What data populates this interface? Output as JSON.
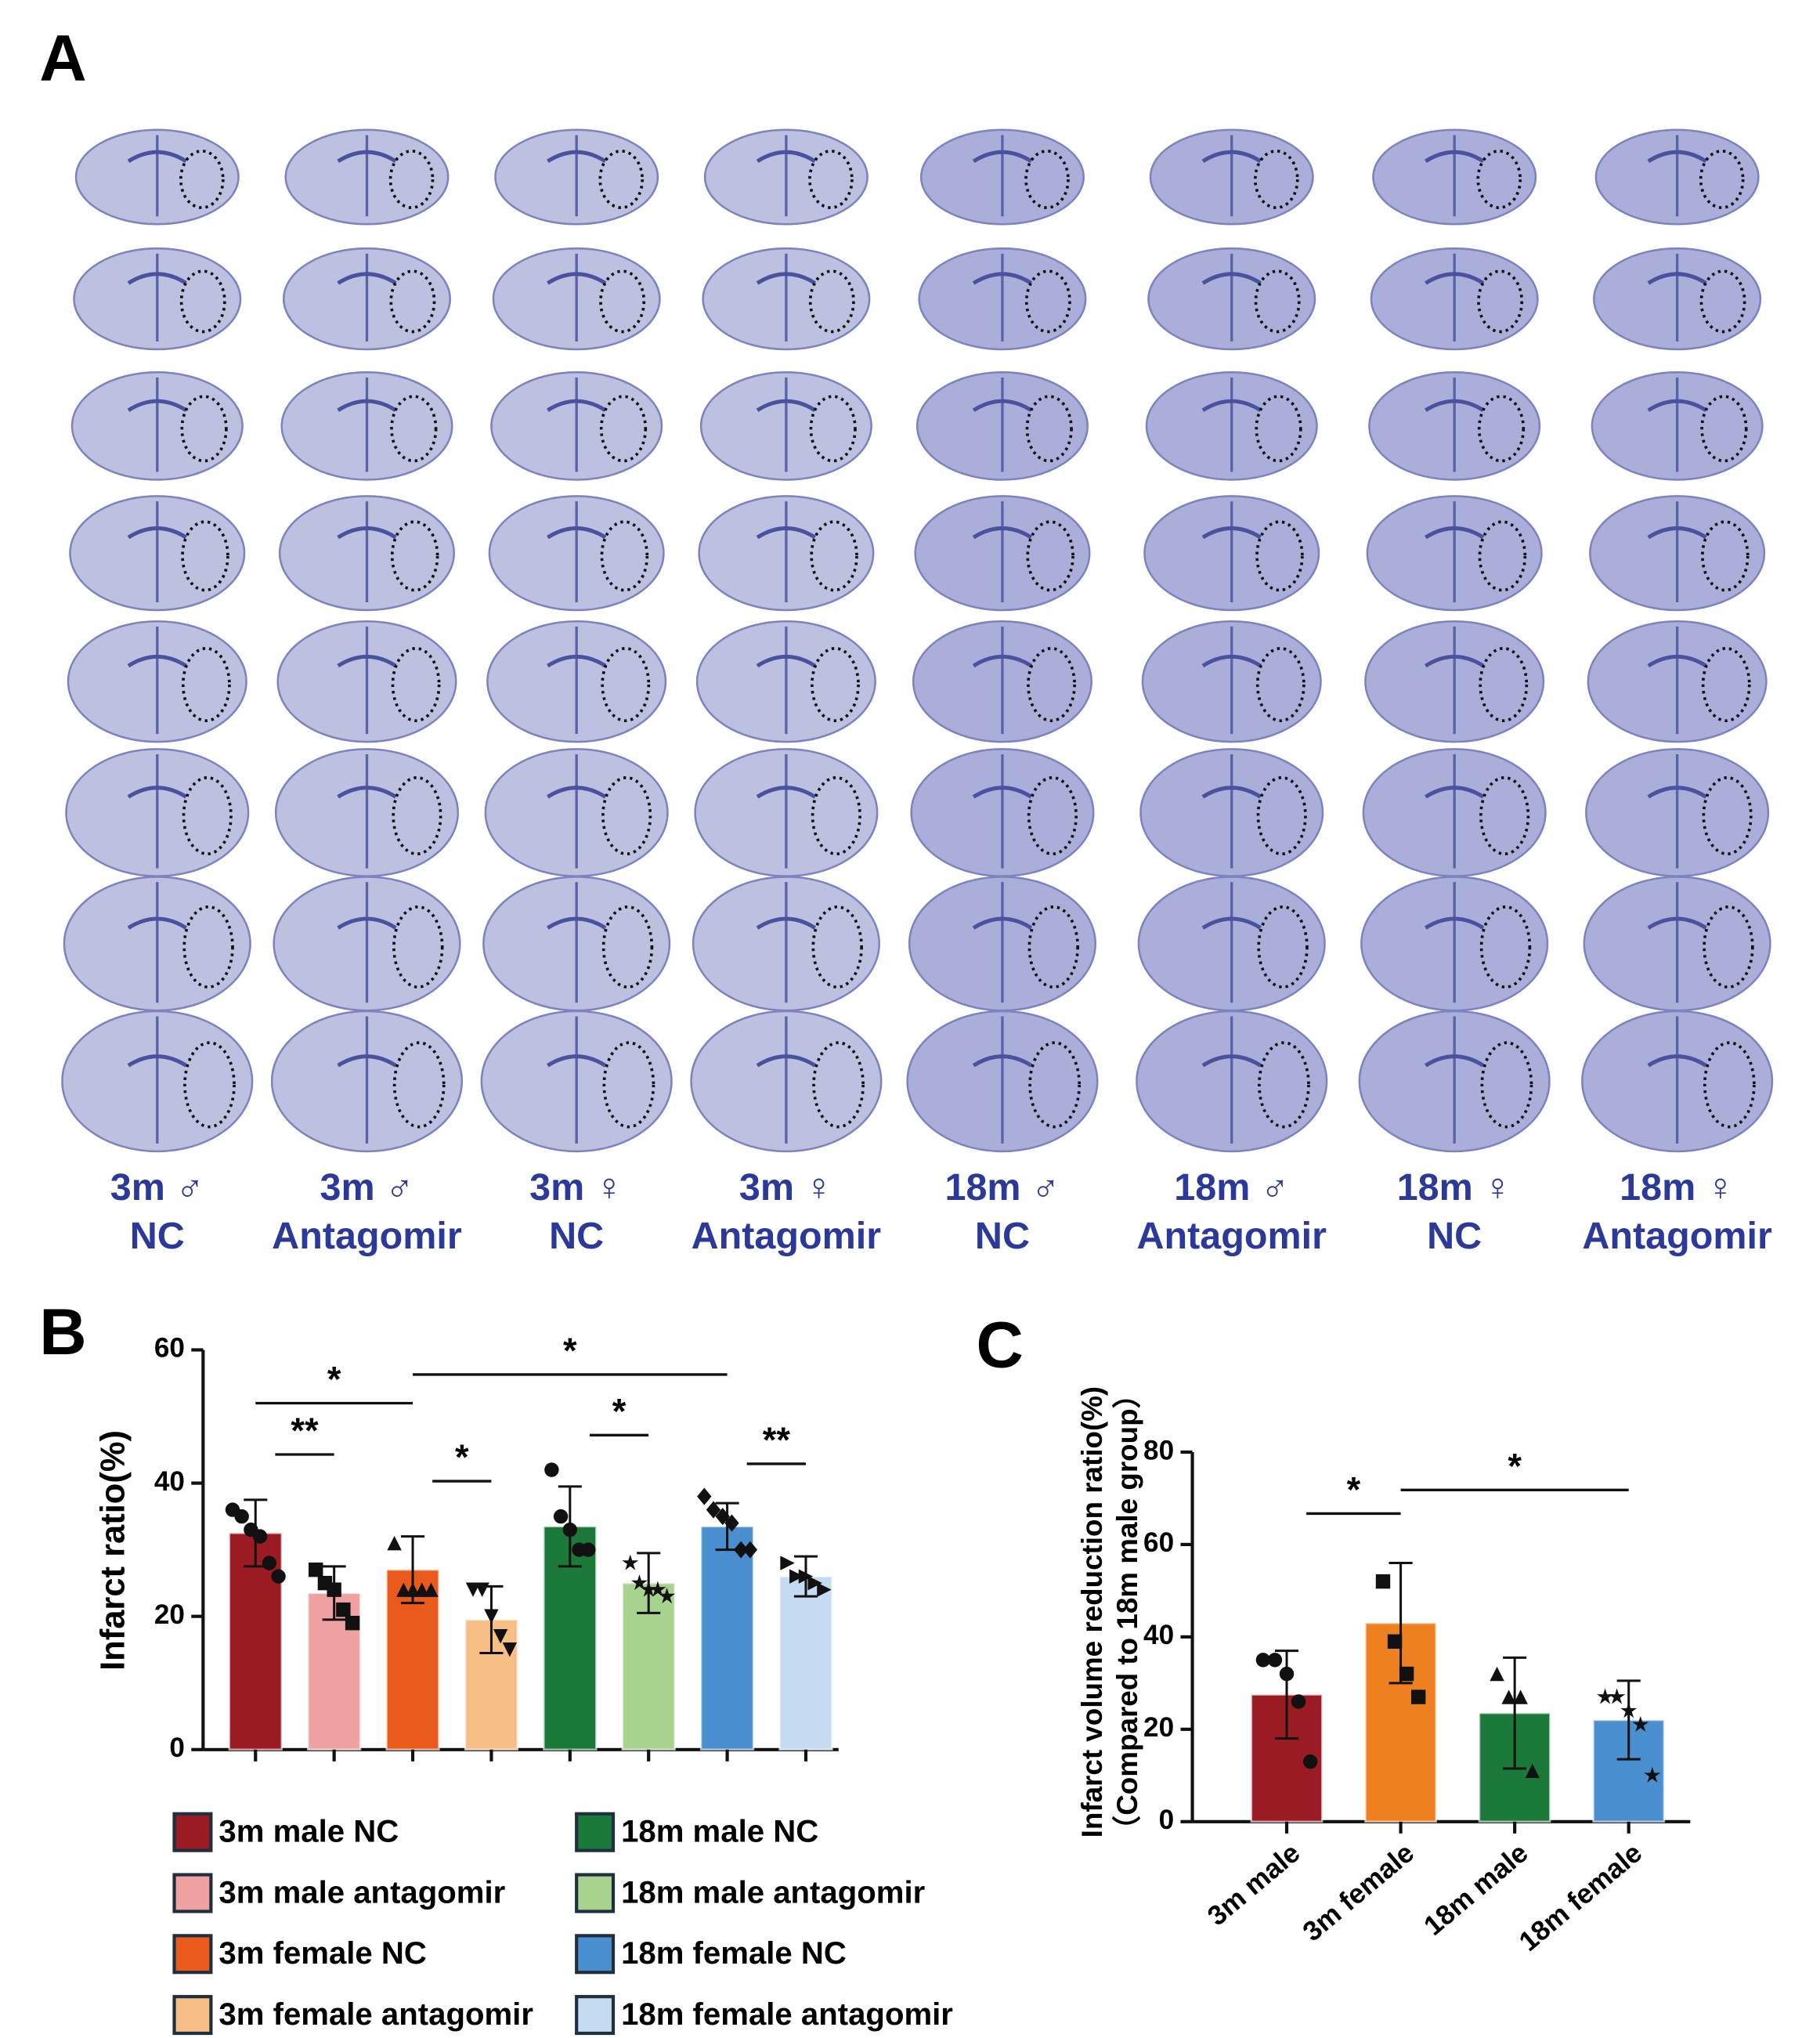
{
  "panel_a": {
    "panel_label": "A",
    "groups": [
      {
        "line1": "3m ♂",
        "line2": "NC"
      },
      {
        "line1": "3m ♂",
        "line2": "Antagomir"
      },
      {
        "line1": "3m ♀",
        "line2": "NC"
      },
      {
        "line1": "3m ♀",
        "line2": "Antagomir"
      },
      {
        "line1": "18m ♂",
        "line2": "NC"
      },
      {
        "line1": "18m ♂",
        "line2": "Antagomir"
      },
      {
        "line1": "18m ♀",
        "line2": "NC"
      },
      {
        "line1": "18m ♀",
        "line2": "Antagomir"
      }
    ]
  },
  "chart_data": [
    {
      "type": "bar",
      "panel_label": "B",
      "ylabel": "Infarct ratio(%)",
      "categories": [
        "3m male NC",
        "3m male antagomir",
        "3m female NC",
        "3m female antagomir",
        "18m male NC",
        "18m male antagomir",
        "18m female NC",
        "18m female antagomir"
      ],
      "values": [
        32.5,
        23.5,
        27,
        19.5,
        33.5,
        25,
        33.5,
        26
      ],
      "errors": [
        5,
        4,
        5,
        5,
        6,
        4.5,
        3.5,
        3
      ],
      "colors": [
        "#9b1b22",
        "#f0a2a2",
        "#e95a1c",
        "#f7bf86",
        "#1b7a3a",
        "#a8d38e",
        "#4a8fd0",
        "#c5dbf2"
      ],
      "markers": [
        "circle",
        "square",
        "triangle",
        "triangle-down",
        "circle",
        "star",
        "diamond",
        "triangle-right"
      ],
      "points": [
        [
          36,
          35,
          33,
          32,
          28,
          26
        ],
        [
          27,
          25,
          24,
          21,
          19
        ],
        [
          31,
          24,
          24,
          24,
          24
        ],
        [
          24,
          24,
          20,
          17,
          15
        ],
        [
          42,
          35,
          33,
          30,
          30
        ],
        [
          28,
          25,
          24,
          24,
          23
        ],
        [
          38,
          36,
          35,
          34,
          30,
          30
        ],
        [
          28,
          26,
          26,
          25,
          24
        ]
      ],
      "ylim": [
        0,
        60
      ],
      "yticks": [
        0,
        20,
        40,
        60
      ],
      "annotations": [
        {
          "from": 0,
          "to": 1,
          "y": 44.3,
          "label": "**"
        },
        {
          "from": 0,
          "to": 2,
          "y": 52,
          "label": "*"
        },
        {
          "from": 2,
          "to": 6,
          "y": 56.3,
          "label": "*"
        },
        {
          "from": 2,
          "to": 3,
          "y": 40.3,
          "label": "*"
        },
        {
          "from": 4,
          "to": 5,
          "y": 47.2,
          "label": "*"
        },
        {
          "from": 6,
          "to": 7,
          "y": 42.9,
          "label": "**"
        }
      ]
    },
    {
      "type": "bar",
      "panel_label": "C",
      "ylabel": [
        "Infarct volume reduction ratio(%)",
        "（Compared to 18m male group）"
      ],
      "categories": [
        "3m male",
        "3m female",
        "18m male",
        "18m female"
      ],
      "values": [
        27.5,
        43,
        23.5,
        22
      ],
      "errors": [
        9.5,
        13,
        12,
        8.5
      ],
      "colors": [
        "#9b1b22",
        "#ef8020",
        "#1b7a3a",
        "#4a8fd0"
      ],
      "markers": [
        "circle",
        "square",
        "triangle",
        "star"
      ],
      "points": [
        [
          35,
          35,
          32,
          26,
          13
        ],
        [
          52,
          39,
          32,
          27
        ],
        [
          32,
          27,
          27,
          11
        ],
        [
          27,
          27,
          24,
          21,
          10
        ]
      ],
      "ylim": [
        0,
        80
      ],
      "yticks": [
        0,
        20,
        40,
        60,
        80
      ],
      "annotations": [
        {
          "from": 0,
          "to": 1,
          "y": 66.7,
          "label": "*"
        },
        {
          "from": 1,
          "to": 3,
          "y": 71.8,
          "label": "*"
        }
      ]
    }
  ]
}
